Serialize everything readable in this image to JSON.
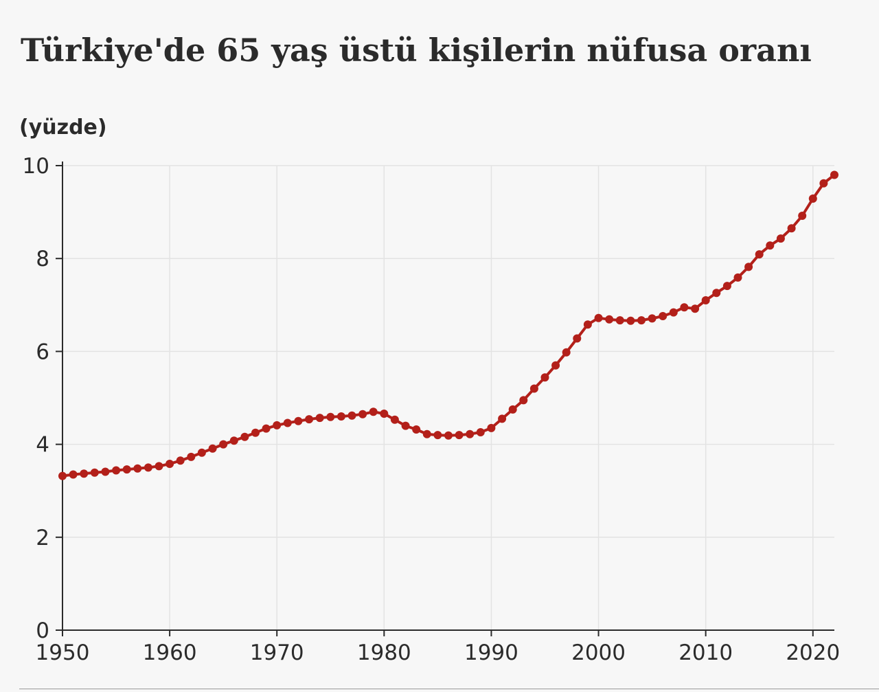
{
  "chart_data": {
    "type": "line",
    "title": "Türkiye'de 65 yaş üstü kişilerin nüfusa oranı",
    "ylabel": "(yüzde)",
    "xlabel": "",
    "xlim": [
      1950,
      2022
    ],
    "ylim": [
      0,
      10
    ],
    "x_ticks": [
      1950,
      1960,
      1970,
      1980,
      1990,
      2000,
      2010,
      2020
    ],
    "y_ticks": [
      0,
      2,
      4,
      6,
      8,
      10
    ],
    "grid": true,
    "legend": "none",
    "line_color": "#b3201a",
    "series": [
      {
        "x": [
          1950,
          1951,
          1952,
          1953,
          1954,
          1955,
          1956,
          1957,
          1958,
          1959,
          1960,
          1961,
          1962,
          1963,
          1964,
          1965,
          1966,
          1967,
          1968,
          1969,
          1970,
          1971,
          1972,
          1973,
          1974,
          1975,
          1976,
          1977,
          1978,
          1979,
          1980,
          1981,
          1982,
          1983,
          1984,
          1985,
          1986,
          1987,
          1988,
          1989,
          1990,
          1991,
          1992,
          1993,
          1994,
          1995,
          1996,
          1997,
          1998,
          1999,
          2000,
          2001,
          2002,
          2003,
          2004,
          2005,
          2006,
          2007,
          2008,
          2009,
          2010,
          2011,
          2012,
          2013,
          2014,
          2015,
          2016,
          2017,
          2018,
          2019,
          2020,
          2021,
          2022
        ],
        "values": [
          3.32,
          3.35,
          3.37,
          3.39,
          3.41,
          3.44,
          3.46,
          3.48,
          3.5,
          3.53,
          3.58,
          3.65,
          3.73,
          3.82,
          3.91,
          4.0,
          4.08,
          4.16,
          4.25,
          4.34,
          4.41,
          4.46,
          4.5,
          4.54,
          4.57,
          4.59,
          4.6,
          4.62,
          4.65,
          4.7,
          4.66,
          4.53,
          4.4,
          4.32,
          4.22,
          4.2,
          4.19,
          4.2,
          4.22,
          4.26,
          4.35,
          4.55,
          4.75,
          4.95,
          5.2,
          5.44,
          5.7,
          5.98,
          6.28,
          6.58,
          6.72,
          6.69,
          6.67,
          6.66,
          6.67,
          6.71,
          6.76,
          6.84,
          6.95,
          6.92,
          7.1,
          7.26,
          7.41,
          7.59,
          7.82,
          8.09,
          8.28,
          8.43,
          8.65,
          8.92,
          9.29,
          9.62,
          9.8
        ]
      }
    ]
  }
}
